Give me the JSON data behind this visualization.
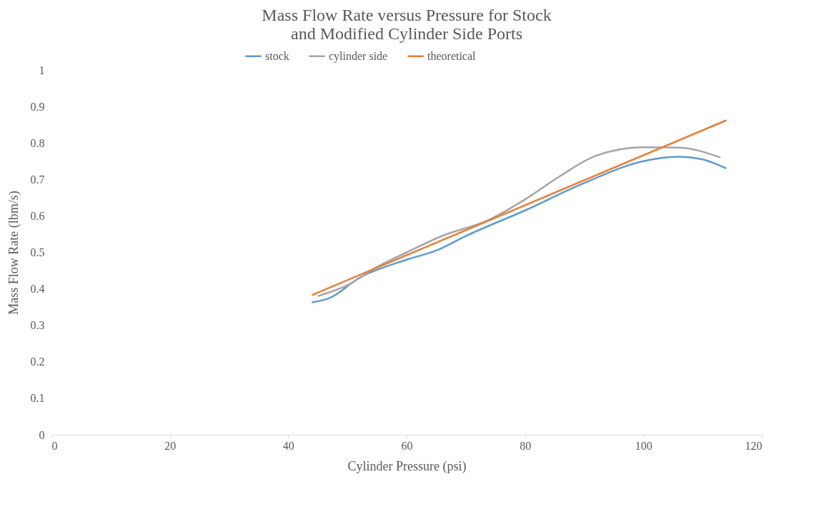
{
  "chart_data": {
    "type": "line",
    "title": "Mass Flow Rate versus Pressure for Stock and Modified Cylinder Side Ports",
    "xlabel": "Cylinder Pressure (psi)",
    "ylabel": "Mass Flow Rate (lbm/s)",
    "xlim": [
      0,
      120
    ],
    "xticks": [
      0,
      20,
      40,
      60,
      80,
      100,
      120
    ],
    "ylim": [
      0,
      1
    ],
    "yticks": [
      {
        "value": 0,
        "label": "0"
      },
      0.1,
      0.2,
      0.3,
      0.4,
      0.5,
      0.6,
      0.7,
      0.8,
      0.9,
      {
        "value": 1,
        "label": "1"
      }
    ],
    "grid": false,
    "legend": "top",
    "marker": "none",
    "line_style": "solid",
    "series": [
      {
        "name": "stock",
        "color": "#5b9bd5",
        "x": [
          44,
          47,
          52,
          60,
          65,
          70,
          80,
          90,
          100,
          106,
          110,
          114
        ],
        "values": [
          0.363,
          0.375,
          0.43,
          0.48,
          0.505,
          0.545,
          0.615,
          0.69,
          0.75,
          0.762,
          0.755,
          0.73
        ]
      },
      {
        "name": "cylinder side",
        "color": "#a5a5a5",
        "x": [
          45,
          50,
          55,
          60,
          66,
          74,
          80,
          86,
          92,
          100,
          106,
          113
        ],
        "values": [
          0.38,
          0.41,
          0.46,
          0.5,
          0.545,
          0.59,
          0.645,
          0.71,
          0.765,
          0.788,
          0.787,
          0.76
        ]
      },
      {
        "name": "theoretical",
        "color": "#ed7d31",
        "x": [
          44,
          114
        ],
        "values": [
          0.383,
          0.862
        ]
      }
    ]
  }
}
